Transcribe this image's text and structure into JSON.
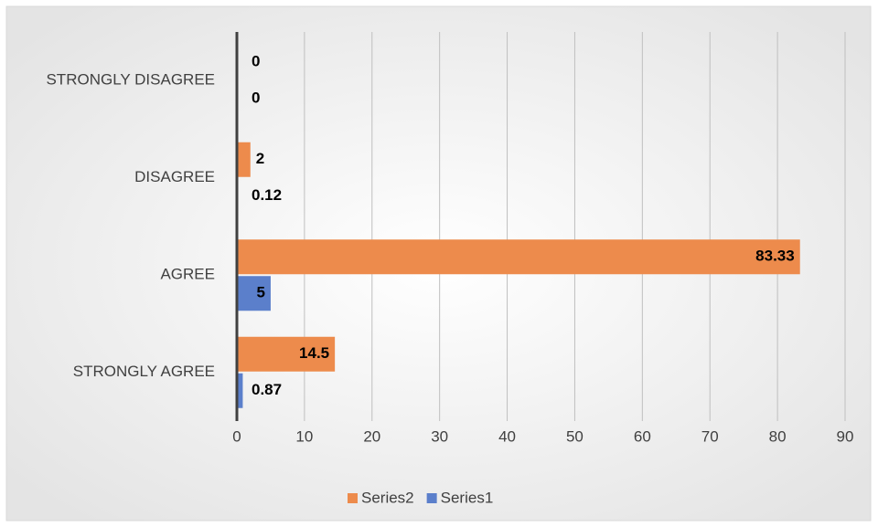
{
  "chart_data": {
    "type": "bar",
    "orientation": "horizontal",
    "categories": [
      "STRONGLY DISAGREE",
      "DISAGREE",
      "AGREE",
      "STRONGLY  AGREE"
    ],
    "series": [
      {
        "name": "Series2",
        "color": "#ed8b4c",
        "values": [
          0,
          2,
          83.33,
          14.5
        ]
      },
      {
        "name": "Series1",
        "color": "#5b7fcb",
        "values": [
          0,
          0.12,
          5,
          0.87
        ]
      }
    ],
    "xlim": [
      0,
      90
    ],
    "xticks": [
      0,
      10,
      20,
      30,
      40,
      50,
      60,
      70,
      80,
      90
    ],
    "grid": true,
    "legend": "bottom"
  }
}
